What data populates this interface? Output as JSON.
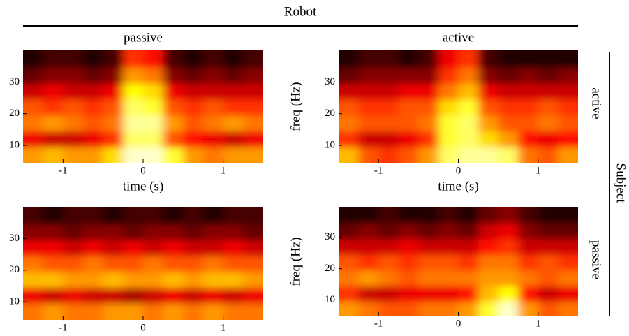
{
  "figure": {
    "title": "Robot",
    "side_label": "Subject",
    "row_labels": [
      "active",
      "passive"
    ]
  },
  "chart_data": [
    {
      "type": "heatmap",
      "title": "passive",
      "xlabel": "time (s)",
      "colormap": "hot",
      "zlim": [
        0,
        1
      ],
      "xlim": [
        -1.5,
        1.5
      ],
      "ylim": [
        4.5,
        40
      ],
      "xticks": [
        -1,
        0,
        1
      ],
      "yticks": [
        10,
        20,
        30
      ],
      "x": [
        -1.375,
        -1.125,
        -0.875,
        -0.625,
        -0.375,
        -0.125,
        0.125,
        0.375,
        0.625,
        0.875,
        1.125,
        1.375
      ],
      "y": [
        7,
        12,
        17,
        22,
        27,
        32,
        37
      ],
      "z": [
        [
          0.6,
          0.65,
          0.6,
          0.6,
          0.7,
          0.95,
          0.95,
          0.8,
          0.6,
          0.55,
          0.6,
          0.6
        ],
        [
          0.35,
          0.3,
          0.3,
          0.35,
          0.45,
          0.85,
          0.85,
          0.5,
          0.4,
          0.35,
          0.3,
          0.35
        ],
        [
          0.55,
          0.6,
          0.55,
          0.5,
          0.55,
          0.9,
          0.9,
          0.6,
          0.5,
          0.55,
          0.6,
          0.55
        ],
        [
          0.5,
          0.45,
          0.5,
          0.45,
          0.5,
          0.85,
          0.8,
          0.5,
          0.45,
          0.5,
          0.45,
          0.45
        ],
        [
          0.3,
          0.35,
          0.3,
          0.3,
          0.35,
          0.75,
          0.7,
          0.35,
          0.3,
          0.3,
          0.3,
          0.3
        ],
        [
          0.15,
          0.2,
          0.2,
          0.15,
          0.2,
          0.6,
          0.55,
          0.2,
          0.15,
          0.2,
          0.15,
          0.2
        ],
        [
          0.05,
          0.1,
          0.1,
          0.05,
          0.1,
          0.45,
          0.4,
          0.1,
          0.05,
          0.1,
          0.05,
          0.1
        ]
      ]
    },
    {
      "type": "heatmap",
      "title": "active",
      "xlabel": "time (s)",
      "ylabel": "freq (Hz)",
      "colormap": "hot",
      "zlim": [
        0,
        1
      ],
      "xlim": [
        -1.5,
        1.5
      ],
      "ylim": [
        4.5,
        40
      ],
      "xticks": [
        -1,
        0,
        1
      ],
      "yticks": [
        10,
        20,
        30
      ],
      "x": [
        -1.375,
        -1.125,
        -0.875,
        -0.625,
        -0.375,
        -0.125,
        0.125,
        0.375,
        0.625,
        0.875,
        1.125,
        1.375
      ],
      "y": [
        7,
        12,
        17,
        22,
        27,
        32,
        37
      ],
      "z": [
        [
          0.65,
          0.5,
          0.45,
          0.5,
          0.6,
          0.85,
          0.9,
          0.9,
          0.85,
          0.55,
          0.5,
          0.6
        ],
        [
          0.45,
          0.3,
          0.3,
          0.35,
          0.45,
          0.8,
          0.85,
          0.7,
          0.6,
          0.4,
          0.35,
          0.4
        ],
        [
          0.55,
          0.5,
          0.5,
          0.5,
          0.55,
          0.8,
          0.85,
          0.6,
          0.5,
          0.5,
          0.55,
          0.5
        ],
        [
          0.5,
          0.45,
          0.45,
          0.5,
          0.5,
          0.7,
          0.8,
          0.5,
          0.45,
          0.45,
          0.5,
          0.45
        ],
        [
          0.3,
          0.3,
          0.3,
          0.35,
          0.35,
          0.55,
          0.65,
          0.35,
          0.3,
          0.3,
          0.3,
          0.3
        ],
        [
          0.15,
          0.2,
          0.2,
          0.2,
          0.2,
          0.45,
          0.55,
          0.2,
          0.15,
          0.2,
          0.15,
          0.2
        ],
        [
          0.05,
          0.1,
          0.1,
          0.05,
          0.1,
          0.35,
          0.45,
          0.1,
          0.05,
          0.05,
          0.05,
          0.05
        ]
      ]
    },
    {
      "type": "heatmap",
      "colormap": "hot",
      "zlim": [
        0,
        1
      ],
      "xlim": [
        -1.5,
        1.5
      ],
      "ylim": [
        4.3,
        39.8
      ],
      "xticks": [
        -1,
        0,
        1
      ],
      "yticks": [
        10,
        20,
        30
      ],
      "x": [
        -1.375,
        -1.125,
        -0.875,
        -0.625,
        -0.375,
        -0.125,
        0.125,
        0.375,
        0.625,
        0.875,
        1.125,
        1.375
      ],
      "y": [
        7,
        12,
        17,
        22,
        27,
        32,
        37
      ],
      "z": [
        [
          0.55,
          0.6,
          0.55,
          0.55,
          0.6,
          0.6,
          0.55,
          0.6,
          0.55,
          0.6,
          0.55,
          0.55
        ],
        [
          0.35,
          0.3,
          0.35,
          0.3,
          0.3,
          0.25,
          0.3,
          0.35,
          0.3,
          0.35,
          0.3,
          0.35
        ],
        [
          0.65,
          0.65,
          0.6,
          0.6,
          0.65,
          0.6,
          0.6,
          0.65,
          0.6,
          0.65,
          0.65,
          0.6
        ],
        [
          0.55,
          0.5,
          0.5,
          0.55,
          0.5,
          0.5,
          0.55,
          0.5,
          0.5,
          0.55,
          0.5,
          0.5
        ],
        [
          0.35,
          0.35,
          0.3,
          0.35,
          0.3,
          0.35,
          0.3,
          0.35,
          0.3,
          0.3,
          0.35,
          0.3
        ],
        [
          0.2,
          0.2,
          0.15,
          0.2,
          0.2,
          0.15,
          0.2,
          0.2,
          0.15,
          0.2,
          0.2,
          0.15
        ],
        [
          0.1,
          0.05,
          0.1,
          0.1,
          0.05,
          0.1,
          0.1,
          0.05,
          0.1,
          0.05,
          0.1,
          0.1
        ]
      ]
    },
    {
      "type": "heatmap",
      "ylabel": "freq (Hz)",
      "colormap": "hot",
      "zlim": [
        0,
        1
      ],
      "xlim": [
        -1.5,
        1.5
      ],
      "ylim": [
        5,
        39.5
      ],
      "xticks": [
        -1,
        0,
        1
      ],
      "yticks": [
        10,
        20,
        30
      ],
      "x": [
        -1.375,
        -1.125,
        -0.875,
        -0.625,
        -0.375,
        -0.125,
        0.125,
        0.375,
        0.625,
        0.875,
        1.125,
        1.375
      ],
      "y": [
        7,
        12,
        17,
        22,
        27,
        32,
        37
      ],
      "z": [
        [
          0.6,
          0.55,
          0.5,
          0.5,
          0.55,
          0.55,
          0.6,
          0.8,
          0.95,
          0.6,
          0.5,
          0.55
        ],
        [
          0.45,
          0.3,
          0.3,
          0.35,
          0.35,
          0.35,
          0.4,
          0.65,
          0.75,
          0.4,
          0.3,
          0.35
        ],
        [
          0.55,
          0.6,
          0.55,
          0.5,
          0.55,
          0.55,
          0.55,
          0.6,
          0.6,
          0.55,
          0.5,
          0.55
        ],
        [
          0.5,
          0.45,
          0.5,
          0.45,
          0.5,
          0.5,
          0.45,
          0.55,
          0.55,
          0.45,
          0.5,
          0.45
        ],
        [
          0.3,
          0.3,
          0.3,
          0.35,
          0.3,
          0.3,
          0.3,
          0.4,
          0.45,
          0.3,
          0.3,
          0.3
        ],
        [
          0.15,
          0.2,
          0.15,
          0.2,
          0.15,
          0.2,
          0.15,
          0.3,
          0.35,
          0.2,
          0.15,
          0.15
        ],
        [
          0.05,
          0.05,
          0.1,
          0.05,
          0.05,
          0.1,
          0.05,
          0.15,
          0.2,
          0.1,
          0.05,
          0.05
        ]
      ]
    }
  ]
}
